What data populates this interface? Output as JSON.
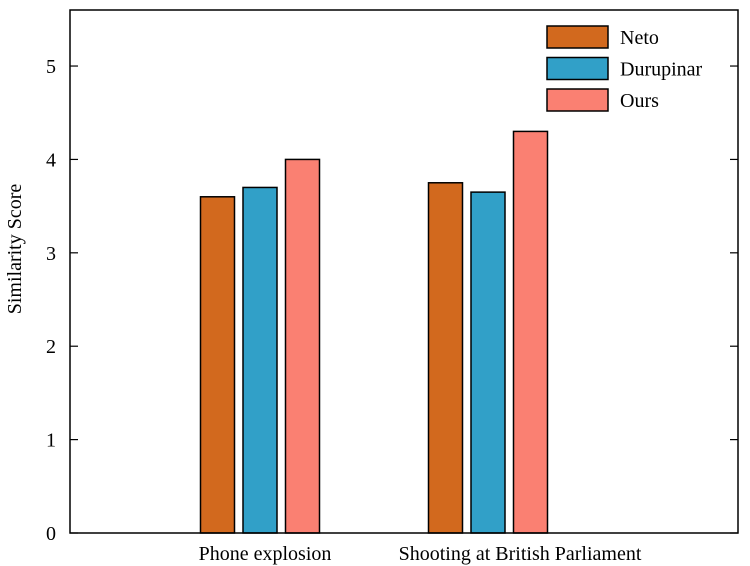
{
  "chart_data": {
    "type": "bar",
    "title": "",
    "xlabel": "",
    "ylabel": "Similarity Score",
    "ylim": [
      0,
      5.6
    ],
    "yticks": [
      0,
      1,
      2,
      3,
      4,
      5
    ],
    "grid": false,
    "legend_position": "top-right",
    "categories": [
      "Phone explosion",
      "Shooting at British Parliament"
    ],
    "series": [
      {
        "name": "Neto",
        "color": "#d2691e",
        "values": [
          3.6,
          3.75
        ]
      },
      {
        "name": "Durupinar",
        "color": "#31a0c8",
        "values": [
          3.7,
          3.65
        ]
      },
      {
        "name": "Ours",
        "color": "#fa8072",
        "values": [
          4.0,
          4.3
        ]
      }
    ]
  }
}
